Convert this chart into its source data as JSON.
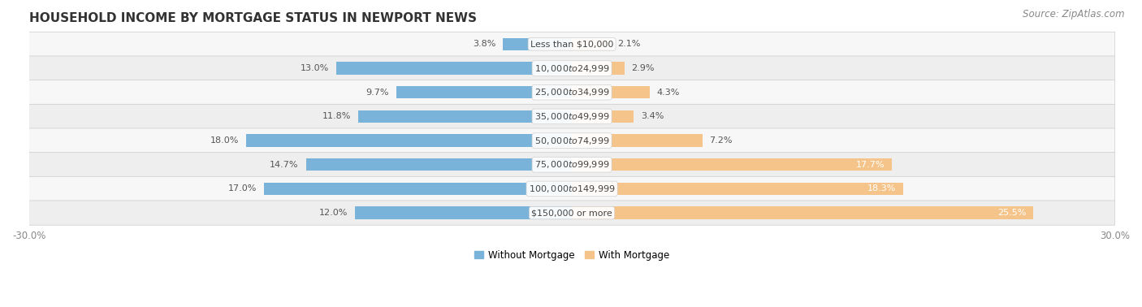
{
  "title": "HOUSEHOLD INCOME BY MORTGAGE STATUS IN NEWPORT NEWS",
  "source": "Source: ZipAtlas.com",
  "categories": [
    "Less than $10,000",
    "$10,000 to $24,999",
    "$25,000 to $34,999",
    "$35,000 to $49,999",
    "$50,000 to $74,999",
    "$75,000 to $99,999",
    "$100,000 to $149,999",
    "$150,000 or more"
  ],
  "without_mortgage": [
    3.8,
    13.0,
    9.7,
    11.8,
    18.0,
    14.7,
    17.0,
    12.0
  ],
  "with_mortgage": [
    2.1,
    2.9,
    4.3,
    3.4,
    7.2,
    17.7,
    18.3,
    25.5
  ],
  "color_without": "#7ab3d9",
  "color_with": "#f5c48a",
  "row_colors": [
    "#f7f7f7",
    "#eeeeee"
  ],
  "xlim": 30.0,
  "legend_label_without": "Without Mortgage",
  "legend_label_with": "With Mortgage",
  "title_fontsize": 11,
  "label_fontsize": 8.0,
  "tick_fontsize": 8.5,
  "source_fontsize": 8.5,
  "bar_height": 0.52
}
